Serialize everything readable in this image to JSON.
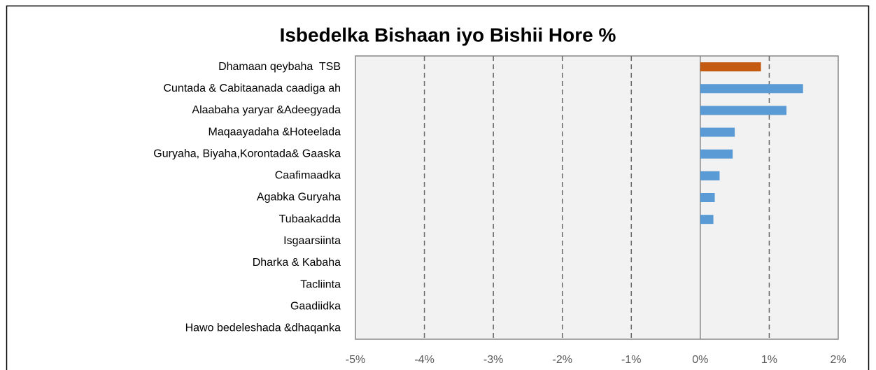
{
  "chart_data": {
    "type": "bar",
    "orientation": "horizontal",
    "title": "Isbedelka Bishaan iyo Bishii Hore %",
    "categories": [
      "Dhamaan qeybaha  TSB",
      "Cuntada & Cabitaanada caadiga ah",
      "Alaabaha yaryar &Adeegyada",
      "Maqaayadaha &Hoteelada",
      "Guryaha, Biyaha,Korontada& Gaaska",
      "Caafimaadka",
      "Agabka Guryaha",
      "Tubaakadda",
      "Isgaarsiinta",
      "Dharka & Kabaha",
      "Tacliinta",
      "Gaadiidka",
      "Hawo bedeleshada &dhaqanka"
    ],
    "values": [
      0.88,
      1.49,
      1.25,
      0.5,
      0.47,
      0.28,
      0.21,
      0.19,
      0,
      0,
      0,
      0,
      0
    ],
    "colors": [
      "#c55a11",
      "#5b9bd5",
      "#5b9bd5",
      "#5b9bd5",
      "#5b9bd5",
      "#5b9bd5",
      "#5b9bd5",
      "#5b9bd5",
      "#5b9bd5",
      "#5b9bd5",
      "#5b9bd5",
      "#5b9bd5",
      "#5b9bd5"
    ],
    "xlim": [
      -5,
      2
    ],
    "xticks": [
      {
        "value": -5,
        "label": "-5%"
      },
      {
        "value": -4,
        "label": "-4%"
      },
      {
        "value": -3,
        "label": "-3%"
      },
      {
        "value": -2,
        "label": "-2%"
      },
      {
        "value": -1,
        "label": "-1%"
      },
      {
        "value": 0,
        "label": "0%"
      },
      {
        "value": 1,
        "label": "1%"
      },
      {
        "value": 2,
        "label": "2%"
      }
    ],
    "grid": true
  }
}
